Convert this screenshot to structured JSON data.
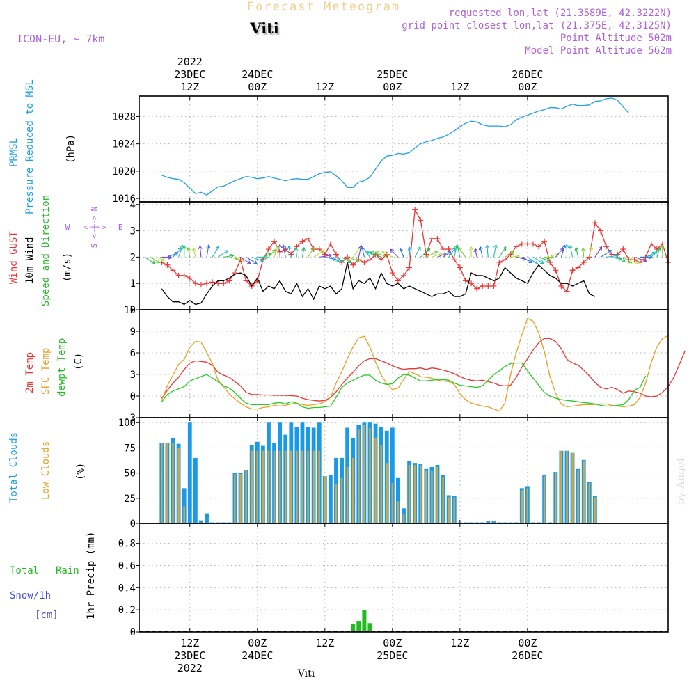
{
  "header": {
    "chart_title": "Forecast Meteogram",
    "place": "Viti",
    "model": "ICON-EU, ~ 7km",
    "requested": "requested lon,lat (21.3589E, 42.3222N)",
    "grid_point": "grid point closest lon,lat (21.375E, 42.3125N)",
    "point_altitude": "Point Altitude 502m",
    "model_altitude": "Model Point Altitude 562m",
    "footer_place": "Viti",
    "credit": "by Angel"
  },
  "colors": {
    "pressure": "#1ba1ea",
    "gust": "#ee3333",
    "wind": "#000000",
    "arrows": "#22bb55",
    "temp2m": "#ee3333",
    "sfc": "#e8a020",
    "dewpt": "#22cc22",
    "total_clouds": "#1a9ae6",
    "low_clouds": "#c8a850",
    "rain": "#22bb22",
    "snow": "#4a4ae0",
    "purple": "#b060d8",
    "title_gold": "#f0d090"
  },
  "time_axis": {
    "top": [
      {
        "hour": 12,
        "lines": [
          "2022",
          "23DEC",
          "12Z"
        ]
      },
      {
        "hour": 24,
        "lines": [
          "24DEC",
          "00Z"
        ]
      },
      {
        "hour": 36,
        "lines": [
          "12Z"
        ]
      },
      {
        "hour": 48,
        "lines": [
          "25DEC",
          "00Z"
        ]
      },
      {
        "hour": 60,
        "lines": [
          "12Z"
        ]
      },
      {
        "hour": 72,
        "lines": [
          "26DEC",
          "00Z"
        ]
      }
    ],
    "bottom": [
      {
        "hour": 12,
        "lines": [
          "12Z",
          "23DEC",
          "2022"
        ]
      },
      {
        "hour": 24,
        "lines": [
          "00Z",
          "24DEC"
        ]
      },
      {
        "hour": 36,
        "lines": [
          "12Z"
        ]
      },
      {
        "hour": 48,
        "lines": [
          "00Z",
          "25DEC"
        ]
      },
      {
        "hour": 60,
        "lines": [
          "12Z"
        ]
      },
      {
        "hour": 72,
        "lines": [
          "00Z",
          "26DEC"
        ]
      }
    ]
  },
  "labels": {
    "pressure": [
      "PRMSL",
      "Pressure Reduced to MSL",
      "(hPa)"
    ],
    "wind": [
      "Wind GUST",
      "10m Wind",
      "Speed and Direction",
      "(m/s)"
    ],
    "compass": {
      "n": "N",
      "s": "S",
      "w": "W",
      "e": "E",
      "arrow_h": "<-|->",
      "arrow_v": "<-|->"
    },
    "temp": [
      "2m Temp",
      "SFC Temp",
      "dewpt Temp",
      "(C)"
    ],
    "clouds": [
      "Total Clouds",
      "Low Clouds",
      "(%)"
    ],
    "precip": [
      "Total",
      "Rain",
      "Snow/1h",
      "[cm]",
      "1hr Precip (mm)"
    ]
  },
  "chart_data": [
    {
      "type": "line",
      "panel": "pressure",
      "ylabel": "(hPa)",
      "ylim": [
        1015.5,
        1031
      ],
      "yticks": [
        1016,
        1020,
        1024,
        1028
      ],
      "x_start_hour": 7,
      "x_step_hours": 1,
      "series": [
        {
          "name": "PRMSL",
          "values": [
            1019.4,
            1019.1,
            1018.9,
            1018.8,
            1018.3,
            1017.5,
            1016.7,
            1016.9,
            1016.5,
            1017.1,
            1017.7,
            1017.8,
            1018.2,
            1018.6,
            1018.9,
            1019.2,
            1019.1,
            1018.9,
            1019.0,
            1019.2,
            1019.0,
            1018.8,
            1018.6,
            1018.8,
            1018.9,
            1018.8,
            1018.8,
            1019.2,
            1019.6,
            1019.8,
            1019.9,
            1019.3,
            1018.6,
            1017.6,
            1017.6,
            1018.4,
            1018.6,
            1019.1,
            1020.3,
            1021.5,
            1022.2,
            1022.3,
            1022.6,
            1022.5,
            1022.7,
            1023.4,
            1024.0,
            1024.3,
            1024.5,
            1024.8,
            1025.0,
            1025.4,
            1025.9,
            1026.5,
            1027.0,
            1027.3,
            1027.2,
            1026.8,
            1026.6,
            1026.6,
            1026.6,
            1026.5,
            1026.8,
            1027.5,
            1027.9,
            1028.2,
            1028.5,
            1028.8,
            1029.0,
            1029.3,
            1029.3,
            1029.1,
            1029.5,
            1029.8,
            1029.6,
            1029.6,
            1029.7,
            1030.2,
            1030.3,
            1030.6,
            1030.7,
            1030.4,
            1029.4,
            1028.5
          ]
        }
      ]
    },
    {
      "type": "line",
      "panel": "wind",
      "ylabel": "(m/s)",
      "ylim": [
        0,
        4.1
      ],
      "yticks": [
        0,
        1,
        2,
        3,
        4
      ],
      "x_start_hour": 7,
      "x_step_hours": 1,
      "series": [
        {
          "name": "Wind GUST",
          "values": [
            1.8,
            1.7,
            1.5,
            1.3,
            1.3,
            1.2,
            1.0,
            0.95,
            1.0,
            1.05,
            1.0,
            1.0,
            1.1,
            1.4,
            1.9,
            1.1,
            0.9,
            1.1,
            1.9,
            2.3,
            2.6,
            2.2,
            2.3,
            2.1,
            2.4,
            2.6,
            2.7,
            2.3,
            2.3,
            2.1,
            2.5,
            2.1,
            1.8,
            2.0,
            1.7,
            1.9,
            1.8,
            1.9,
            2.1,
            1.9,
            2.1,
            1.4,
            1.1,
            1.3,
            1.6,
            3.8,
            3.4,
            2.1,
            2.7,
            2.7,
            2.3,
            2.3,
            1.9,
            1.6,
            1.1,
            1.0,
            0.8,
            0.9,
            0.9,
            0.9,
            1.8,
            1.9,
            2.1,
            2.4,
            2.5,
            2.5,
            2.5,
            2.4,
            2.6,
            1.8,
            1.5,
            0.9,
            0.7,
            1.5,
            1.6,
            1.8,
            2.0,
            3.3,
            3.0,
            2.4,
            2.1,
            2.1,
            2.3,
            1.9,
            1.9,
            1.8,
            2.0,
            2.5,
            2.3,
            2.5,
            1.8
          ]
        },
        {
          "name": "10m Wind",
          "values": [
            0.8,
            0.5,
            0.3,
            0.3,
            0.2,
            0.35,
            0.2,
            0.25,
            0.6,
            0.9,
            1.1,
            1.1,
            1.2,
            1.35,
            1.4,
            1.3,
            0.9,
            1.2,
            0.7,
            0.9,
            0.8,
            1.1,
            0.7,
            0.6,
            1.0,
            0.5,
            0.8,
            0.4,
            0.9,
            0.8,
            0.9,
            0.6,
            0.8,
            1.8,
            0.8,
            1.1,
            1.0,
            1.2,
            0.8,
            1.4,
            1.0,
            0.9,
            1.0,
            0.8,
            0.9,
            0.8,
            0.7,
            0.6,
            0.5,
            0.6,
            0.6,
            0.7,
            0.5,
            0.5,
            0.6,
            1.4,
            1.3,
            1.3,
            1.2,
            1.1,
            1.2,
            1.6,
            1.4,
            1.2,
            1.1,
            1.0,
            1.4,
            1.7,
            1.5,
            1.3,
            1.2,
            1.0,
            1.0,
            0.9,
            1.0,
            1.1,
            0.6,
            0.5
          ]
        }
      ],
      "arrows_y": 2.0
    },
    {
      "type": "line",
      "panel": "temperature",
      "ylabel": "(C)",
      "ylim": [
        -3,
        12
      ],
      "yticks": [
        -3,
        0,
        3,
        6,
        9,
        12
      ],
      "x_start_hour": 7,
      "x_step_hours": 1,
      "series": [
        {
          "name": "2m Temp",
          "values": [
            -0.3,
            0.8,
            1.8,
            2.6,
            3.7,
            4.6,
            4.9,
            4.8,
            4.7,
            4.3,
            3.3,
            2.9,
            2.6,
            2.0,
            1.4,
            0.5,
            0.2,
            0.2,
            0.15,
            0.15,
            0.1,
            0.1,
            0.1,
            0.05,
            0.0,
            -0.3,
            -0.5,
            -0.6,
            -0.7,
            -0.6,
            -0.2,
            0.6,
            1.6,
            2.5,
            3.3,
            4.2,
            4.9,
            5.2,
            5.2,
            4.9,
            4.6,
            4.2,
            3.9,
            3.7,
            3.8,
            3.8,
            3.9,
            3.7,
            3.9,
            3.8,
            3.6,
            3.4,
            3.1,
            2.7,
            2.4,
            2.2,
            2.1,
            2.2,
            2.0,
            1.8,
            1.5,
            1.4,
            1.5,
            2.6,
            4.0,
            5.2,
            6.4,
            7.4,
            8.0,
            8.0,
            7.6,
            6.6,
            5.1,
            4.6,
            4.3,
            3.6,
            2.8,
            1.9,
            1.2,
            1.0,
            1.2,
            0.9,
            0.4,
            0.7,
            0.6,
            0.4,
            0.0,
            -0.1,
            0.0,
            0.5,
            1.3,
            2.6,
            4.4,
            6.3
          ]
        },
        {
          "name": "SFC Temp",
          "values": [
            -0.6,
            1.4,
            2.9,
            4.4,
            5.1,
            6.8,
            7.6,
            7.5,
            6.1,
            4.5,
            2.2,
            1.3,
            0.3,
            -0.4,
            -1.0,
            -1.5,
            -1.8,
            -1.8,
            -1.6,
            -1.5,
            -1.3,
            -1.4,
            -1.3,
            -1.1,
            -1.0,
            -1.2,
            -1.3,
            -1.2,
            -1.1,
            -0.8,
            -0.2,
            1.8,
            3.4,
            5.2,
            6.8,
            8.1,
            8.3,
            6.8,
            4.7,
            2.9,
            1.7,
            0.9,
            1.1,
            2.3,
            3.4,
            3.1,
            2.7,
            2.6,
            2.5,
            2.2,
            2.1,
            2.0,
            1.6,
            0.3,
            -0.5,
            -1.0,
            -1.2,
            -1.4,
            -1.5,
            -1.8,
            -2.1,
            -1.0,
            3.0,
            6.0,
            8.5,
            10.8,
            10.4,
            8.8,
            6.2,
            2.7,
            0.4,
            -1.1,
            -1.5,
            -1.4,
            -1.3,
            -1.2,
            -1.2,
            -1.2,
            -1.1,
            -1.1,
            -1.3,
            -1.4,
            -1.5,
            -1.4,
            -1.2,
            -0.2,
            1.8,
            4.7,
            6.8,
            8.0,
            8.4
          ]
        },
        {
          "name": "dewpt Temp",
          "values": [
            -0.8,
            0.2,
            0.7,
            1.0,
            1.3,
            2.1,
            2.4,
            2.7,
            3.0,
            2.5,
            2.0,
            1.4,
            1.1,
            0.5,
            -0.3,
            -1.0,
            -1.2,
            -1.2,
            -1.2,
            -1.2,
            -1.0,
            -0.9,
            -1.1,
            -0.8,
            -1.0,
            -1.5,
            -1.7,
            -1.6,
            -1.6,
            -1.5,
            -1.4,
            -0.2,
            1.2,
            1.8,
            2.2,
            2.6,
            2.9,
            2.9,
            2.2,
            1.8,
            1.6,
            1.7,
            2.5,
            3.0,
            2.9,
            2.5,
            2.1,
            2.1,
            2.2,
            2.3,
            2.3,
            2.2,
            1.8,
            1.5,
            1.4,
            1.3,
            1.2,
            1.4,
            2.2,
            3.0,
            3.5,
            4.1,
            4.5,
            4.6,
            4.6,
            3.5,
            2.5,
            1.5,
            0.5,
            0.0,
            -0.3,
            -0.5,
            -0.6,
            -0.7,
            -0.8,
            -0.9,
            -1.0,
            -1.1,
            -1.3,
            -1.4,
            -1.4,
            -1.3,
            -1.2,
            -0.5,
            0.8,
            1.2,
            2.8
          ]
        }
      ]
    },
    {
      "type": "bar",
      "panel": "clouds",
      "ylabel": "(%)",
      "ylim": [
        0,
        105
      ],
      "yticks": [
        0,
        25,
        50,
        75,
        100
      ],
      "x_start_hour": 7,
      "x_step_hours": 1,
      "series": [
        {
          "name": "Total Clouds",
          "values": [
            80,
            80,
            85,
            79,
            35,
            100,
            65,
            3,
            10,
            1,
            1,
            1,
            1,
            50,
            50,
            53,
            78,
            81,
            77,
            100,
            80,
            100,
            88,
            100,
            96,
            100,
            96,
            95,
            100,
            47,
            48,
            65,
            65,
            95,
            85,
            98,
            100,
            100,
            99,
            96,
            92,
            95,
            45,
            15,
            62,
            60,
            59,
            54,
            56,
            58,
            48,
            28,
            27,
            1,
            1,
            1,
            1,
            1,
            2,
            2,
            1,
            1,
            1,
            1,
            35,
            37,
            1,
            1,
            48,
            1,
            51,
            72,
            72,
            70,
            54,
            63,
            41,
            27
          ]
        },
        {
          "name": "Low Clouds",
          "values": [
            80,
            80,
            80,
            75,
            17,
            0,
            0,
            0,
            0,
            0,
            0,
            0,
            0,
            49,
            49,
            53,
            72,
            72,
            72,
            72,
            72,
            72,
            72,
            72,
            72,
            72,
            72,
            72,
            72,
            47,
            0,
            39,
            45,
            56,
            65,
            93,
            98,
            95,
            85,
            78,
            60,
            40,
            22,
            9,
            58,
            58,
            58,
            52,
            52,
            56,
            46,
            26,
            26,
            0,
            0,
            0,
            0,
            0,
            1,
            1,
            0,
            0,
            0,
            0,
            33,
            35,
            0,
            0,
            47,
            0,
            50,
            72,
            72,
            70,
            53,
            62,
            40,
            26
          ]
        }
      ]
    },
    {
      "type": "bar",
      "panel": "precipitation",
      "ylabel": "1hr Precip (mm)",
      "ylim": [
        0,
        0.98
      ],
      "yticks": [
        0,
        0.2,
        0.4,
        0.6,
        0.8
      ],
      "x": [
        41,
        42,
        43,
        44
      ],
      "series": [
        {
          "name": "Total Rain",
          "values": [
            0.07,
            0.1,
            0.2,
            0.08
          ]
        }
      ]
    }
  ]
}
